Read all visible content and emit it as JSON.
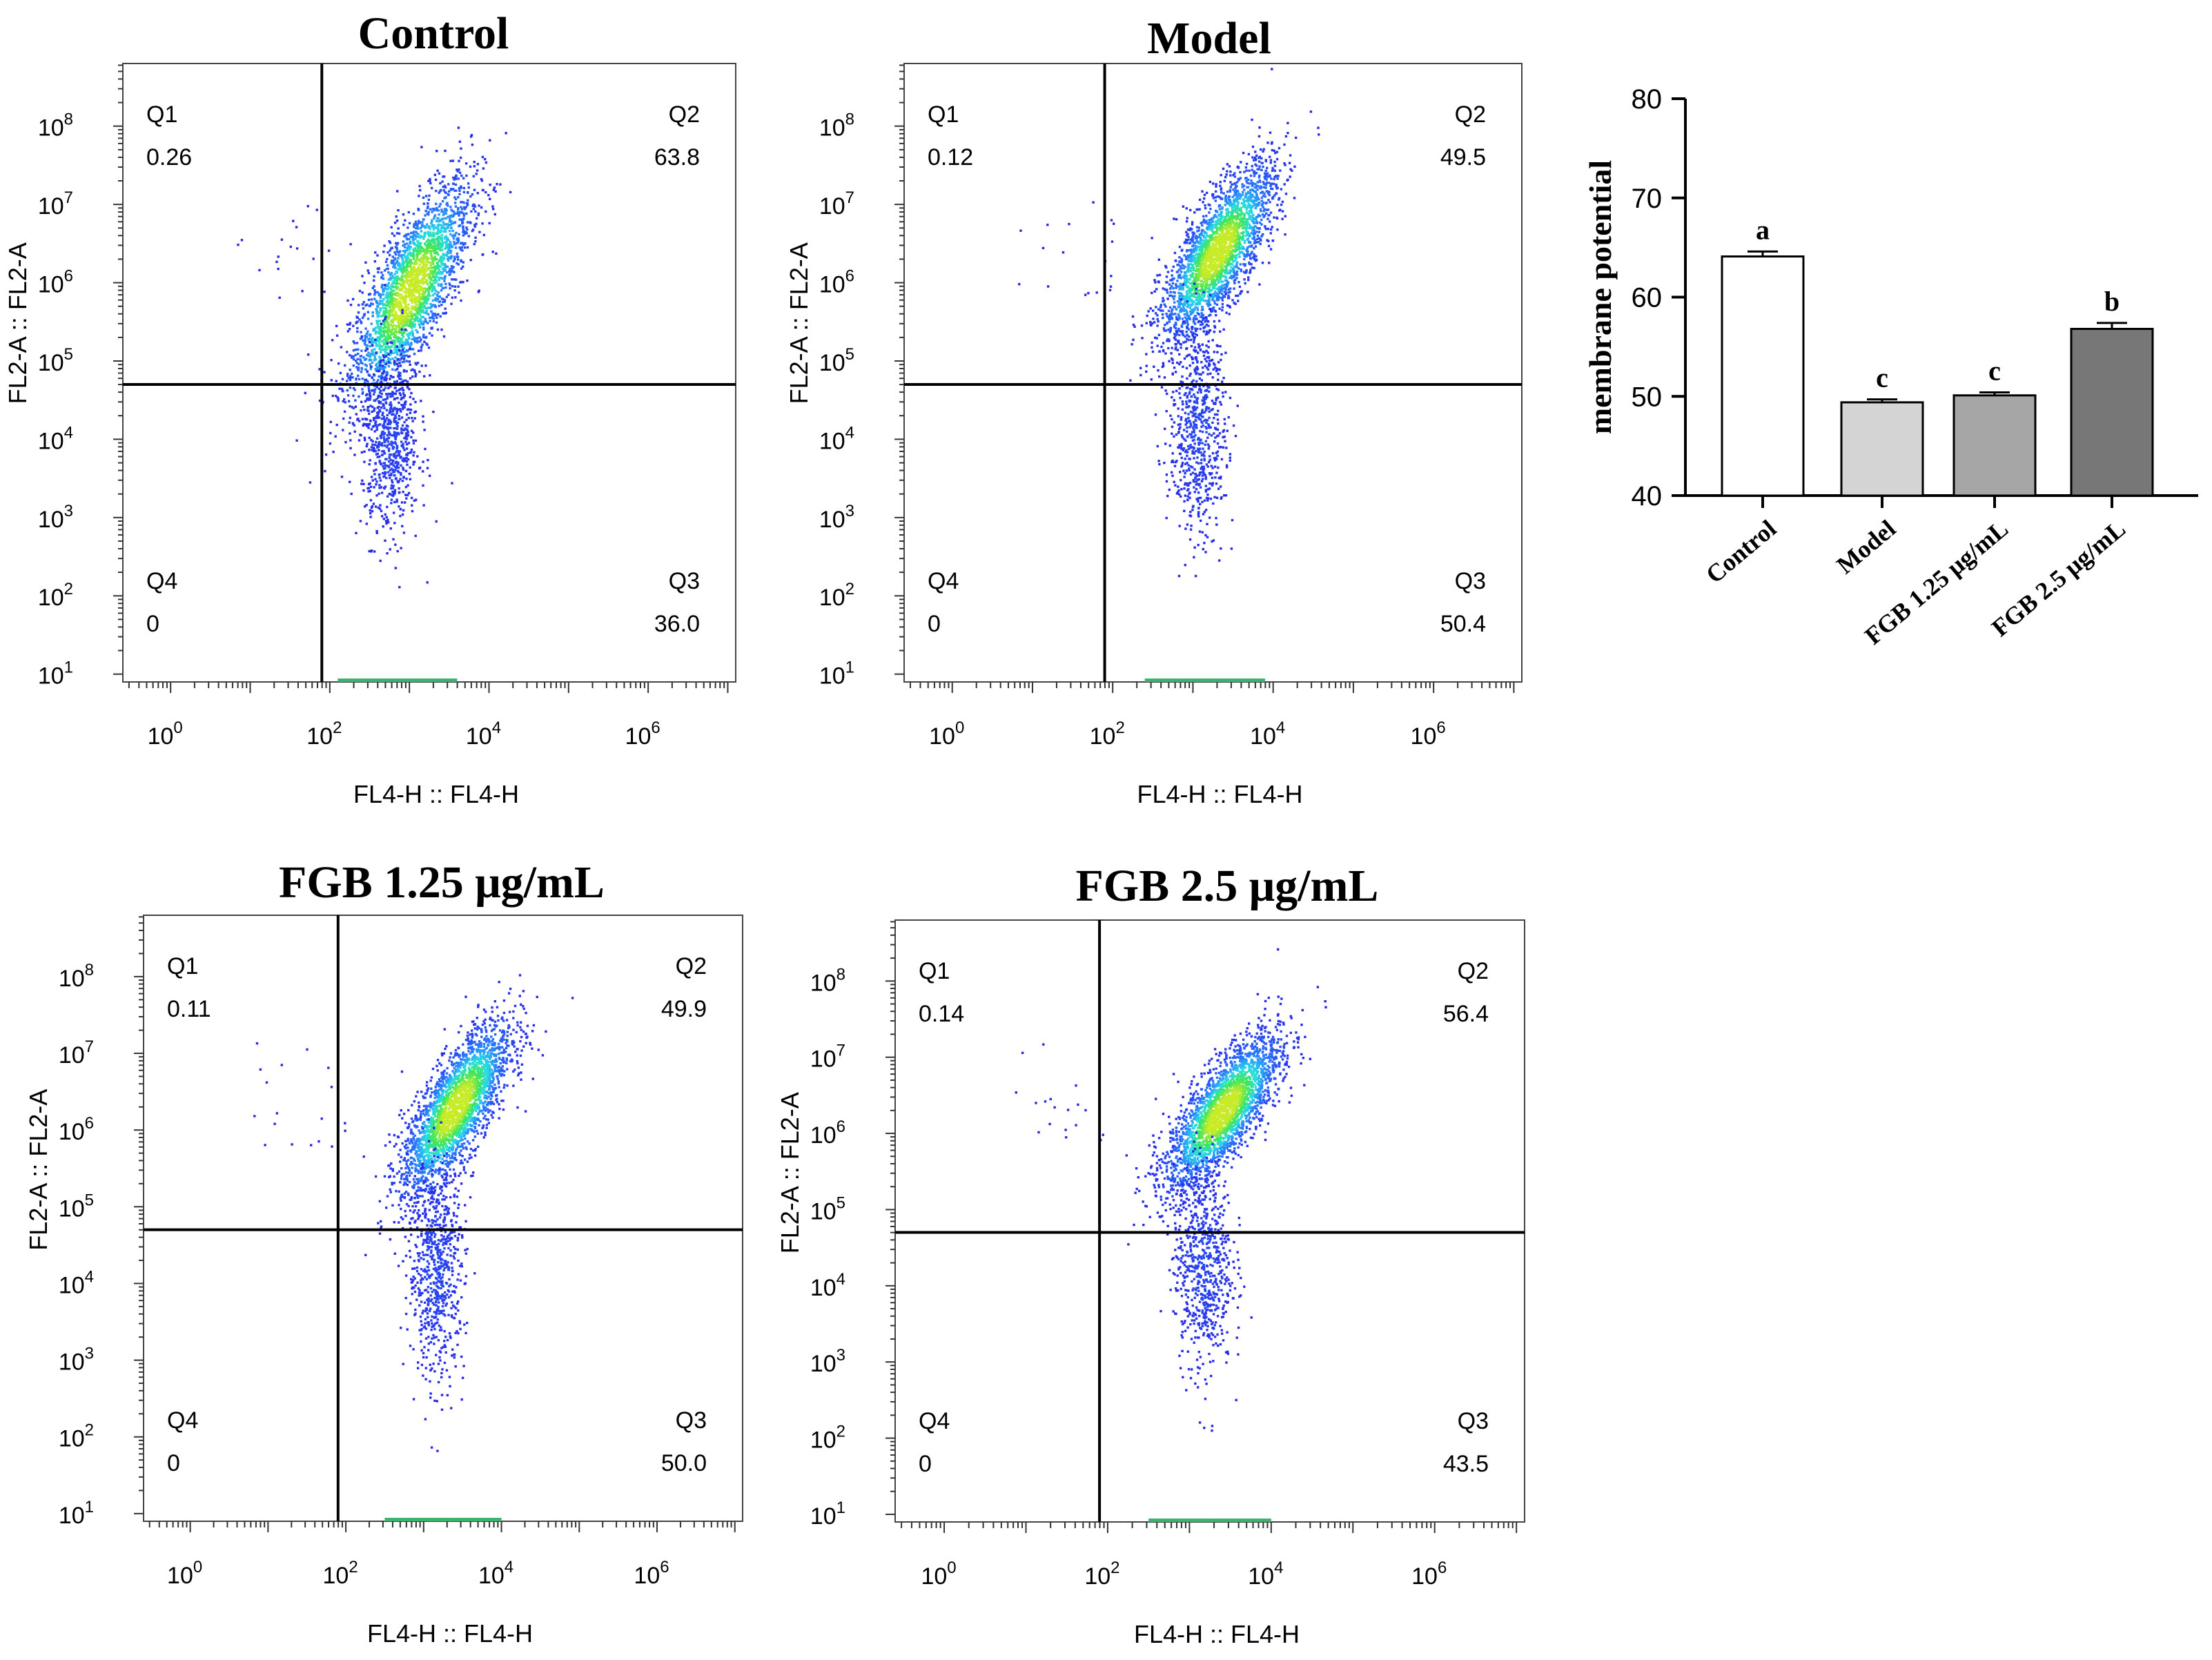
{
  "chart_data": [
    {
      "type": "scatter",
      "title": "Control",
      "xlabel": "FL4-H :: FL4-H",
      "ylabel": "FL2-A :: FL2-A",
      "x_ticks": [
        "10",
        "10",
        "10",
        "10"
      ],
      "x_tick_exp": [
        "0",
        "2",
        "4",
        "6"
      ],
      "y_ticks": [
        "10",
        "10",
        "10",
        "10",
        "10",
        "10",
        "10",
        "10"
      ],
      "y_tick_exp": [
        "1",
        "2",
        "3",
        "4",
        "5",
        "6",
        "7",
        "8"
      ],
      "x_scale": "log10",
      "y_scale": "log10",
      "xlim": [
        -0.6,
        7.1
      ],
      "ylim": [
        0.9,
        8.8
      ],
      "gate": {
        "x": 1.9,
        "y": 4.7
      },
      "quadrants": [
        {
          "label": "Q1",
          "value": "0.26"
        },
        {
          "label": "Q2",
          "value": "63.8"
        },
        {
          "label": "Q3",
          "value": "36.0"
        },
        {
          "label": "Q4",
          "value": "0"
        }
      ],
      "population": {
        "center_x": 3.0,
        "center_y": 5.9,
        "spread_x": 0.38,
        "spread_y": 0.7,
        "tail_center_y": 4.0,
        "tail_spread_y": 0.6
      }
    },
    {
      "type": "scatter",
      "title": "Model",
      "xlabel": "FL4-H :: FL4-H",
      "ylabel": "FL2-A :: FL2-A",
      "x_ticks": [
        "10",
        "10",
        "10",
        "10"
      ],
      "x_tick_exp": [
        "0",
        "2",
        "4",
        "6"
      ],
      "y_ticks": [
        "10",
        "10",
        "10",
        "10",
        "10",
        "10",
        "10",
        "10"
      ],
      "y_tick_exp": [
        "1",
        "2",
        "3",
        "4",
        "5",
        "6",
        "7",
        "8"
      ],
      "x_scale": "log10",
      "y_scale": "log10",
      "xlim": [
        -0.6,
        7.1
      ],
      "ylim": [
        0.9,
        8.8
      ],
      "gate": {
        "x": 1.9,
        "y": 4.7
      },
      "quadrants": [
        {
          "label": "Q1",
          "value": "0.12"
        },
        {
          "label": "Q2",
          "value": "49.5"
        },
        {
          "label": "Q3",
          "value": "50.4"
        },
        {
          "label": "Q4",
          "value": "0"
        }
      ],
      "population": {
        "center_x": 3.3,
        "center_y": 6.4,
        "spread_x": 0.35,
        "spread_y": 0.55,
        "tail_center_y": 4.2,
        "tail_spread_y": 0.7
      }
    },
    {
      "type": "scatter",
      "title": "FGB 1.25 μg/mL",
      "xlabel": "FL4-H :: FL4-H",
      "ylabel": "FL2-A :: FL2-A",
      "x_ticks": [
        "10",
        "10",
        "10",
        "10"
      ],
      "x_tick_exp": [
        "0",
        "2",
        "4",
        "6"
      ],
      "y_ticks": [
        "10",
        "10",
        "10",
        "10",
        "10",
        "10",
        "10",
        "10"
      ],
      "y_tick_exp": [
        "1",
        "2",
        "3",
        "4",
        "5",
        "6",
        "7",
        "8"
      ],
      "x_scale": "log10",
      "y_scale": "log10",
      "xlim": [
        -0.6,
        7.1
      ],
      "ylim": [
        0.9,
        8.8
      ],
      "gate": {
        "x": 1.9,
        "y": 4.7
      },
      "quadrants": [
        {
          "label": "Q1",
          "value": "0.11"
        },
        {
          "label": "Q2",
          "value": "49.9"
        },
        {
          "label": "Q3",
          "value": "50.0"
        },
        {
          "label": "Q4",
          "value": "0"
        }
      ],
      "population": {
        "center_x": 3.4,
        "center_y": 6.3,
        "spread_x": 0.35,
        "spread_y": 0.55,
        "tail_center_y": 4.2,
        "tail_spread_y": 0.7
      }
    },
    {
      "type": "scatter",
      "title": "FGB 2.5 μg/mL",
      "xlabel": "FL4-H :: FL4-H",
      "ylabel": "FL2-A :: FL2-A",
      "x_ticks": [
        "10",
        "10",
        "10",
        "10"
      ],
      "x_tick_exp": [
        "0",
        "2",
        "4",
        "6"
      ],
      "y_ticks": [
        "10",
        "10",
        "10",
        "10",
        "10",
        "10",
        "10",
        "10"
      ],
      "y_tick_exp": [
        "1",
        "2",
        "3",
        "4",
        "5",
        "6",
        "7",
        "8"
      ],
      "x_scale": "log10",
      "y_scale": "log10",
      "xlim": [
        -0.6,
        7.1
      ],
      "ylim": [
        0.9,
        8.8
      ],
      "gate": {
        "x": 1.9,
        "y": 4.7
      },
      "quadrants": [
        {
          "label": "Q1",
          "value": "0.14"
        },
        {
          "label": "Q2",
          "value": "56.4"
        },
        {
          "label": "Q3",
          "value": "43.5"
        },
        {
          "label": "Q4",
          "value": "0"
        }
      ],
      "population": {
        "center_x": 3.4,
        "center_y": 6.3,
        "spread_x": 0.35,
        "spread_y": 0.5,
        "tail_center_y": 4.3,
        "tail_spread_y": 0.7
      }
    },
    {
      "type": "bar",
      "title": "",
      "categories": [
        "Control",
        "Model",
        "FGB 1.25 μg/mL",
        "FGB 2.5 μg/mL"
      ],
      "values": [
        64.1,
        49.4,
        50.1,
        56.8
      ],
      "errors": [
        0.5,
        0.3,
        0.3,
        0.6
      ],
      "significance": [
        "a",
        "c",
        "c",
        "b"
      ],
      "bar_colors": [
        "#ffffff",
        "#d4d4d4",
        "#a6a6a6",
        "#777777"
      ],
      "xlabel": "",
      "ylabel": "membrane potential",
      "ylim": [
        40,
        80
      ],
      "yticks": [
        40,
        50,
        60,
        70,
        80
      ],
      "ytick_labels": [
        "40",
        "50",
        "60",
        "70",
        "80"
      ]
    }
  ]
}
